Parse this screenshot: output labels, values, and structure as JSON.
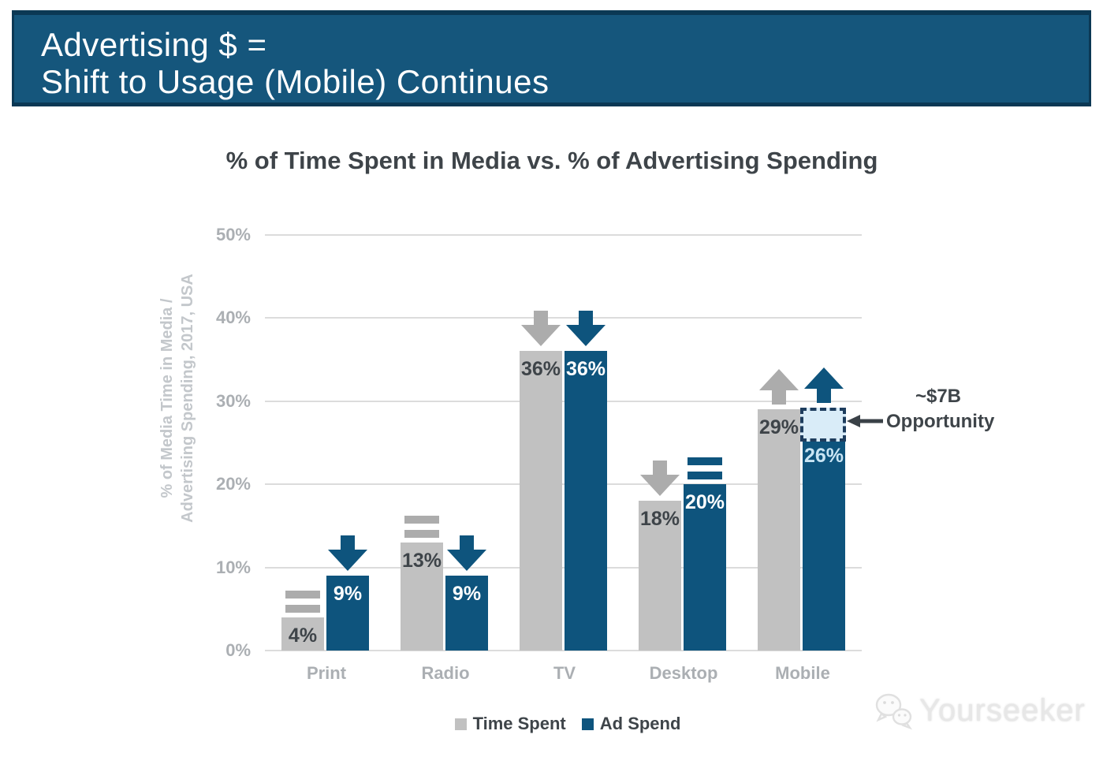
{
  "header": {
    "line1": "Advertising $ =",
    "line2": "Shift to Usage (Mobile) Continues"
  },
  "chart_data": {
    "type": "bar",
    "title": "% of Time Spent in Media vs. % of Advertising Spending",
    "ylabel": "% of Media Time in Media / Advertising Spending, 2017, USA",
    "ylabel_lines": [
      "% of Media Time in Media /",
      "Advertising Spending, 2017, USA"
    ],
    "categories": [
      "Print",
      "Radio",
      "TV",
      "Desktop",
      "Mobile"
    ],
    "series": [
      {
        "name": "Time Spent",
        "values": [
          4,
          13,
          36,
          18,
          29
        ],
        "unit": "%",
        "trend_icons": [
          "equal",
          "equal",
          "down",
          "down",
          "up"
        ]
      },
      {
        "name": "Ad Spend",
        "values": [
          9,
          9,
          36,
          20,
          26
        ],
        "unit": "%",
        "trend_icons": [
          "down",
          "down",
          "down",
          "equal",
          "up"
        ]
      }
    ],
    "ylim": [
      0,
      50
    ],
    "yticks": [
      0,
      10,
      20,
      30,
      40,
      50
    ],
    "ytick_labels": [
      "0%",
      "10%",
      "20%",
      "30%",
      "40%",
      "50%"
    ],
    "grid": true,
    "legend_position": "bottom",
    "annotation": {
      "line1": "~$7B",
      "line2": "Opportunity"
    }
  },
  "watermark": {
    "text": "Yourseeker"
  },
  "colors": {
    "banner_bg": "#15567C",
    "banner_edge": "#0B3854",
    "time_spent_bar": "#C1C1C1",
    "ad_spend_bar": "#0E547D",
    "time_spent_indicator": "#ACACAC",
    "ad_spend_indicator": "#0E547D",
    "grid_line": "#DCDCDC",
    "axis_text": "#ABAFB3",
    "dark_text": "#3E4449",
    "value_on_gray": "#3E4449",
    "value_on_blue": "#FFFFFF",
    "value_26_label": "#C9E5F4",
    "opportunity_box_fill": "#D9ECF8",
    "opportunity_box_border": "#1E3D5E",
    "annotation_arrow": "#3A4147"
  }
}
